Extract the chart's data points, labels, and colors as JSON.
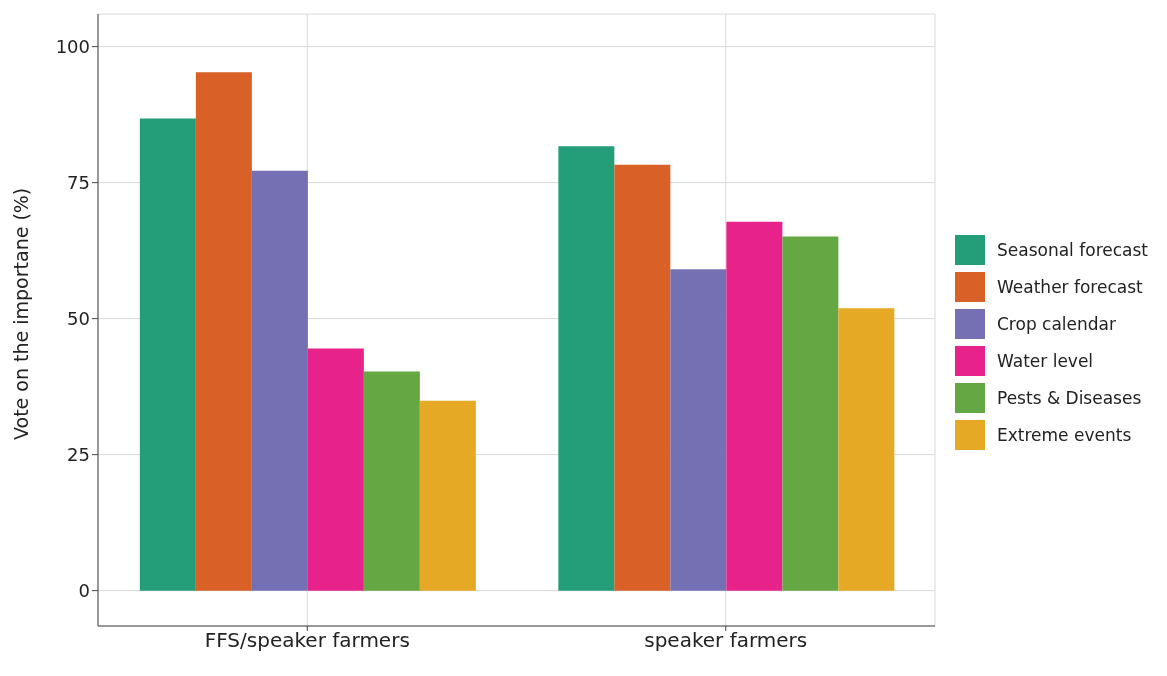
{
  "chart_data": {
    "type": "bar",
    "ylabel": "Vote on the importane (%)",
    "categories": [
      "FFS/speaker farmers",
      "speaker farmers"
    ],
    "series": [
      {
        "name": "Seasonal forecast",
        "color": "#239e78",
        "values": [
          86.8,
          81.7
        ]
      },
      {
        "name": "Weather forecast",
        "color": "#d96027",
        "values": [
          95.3,
          78.3
        ]
      },
      {
        "name": "Crop calendar",
        "color": "#7570b3",
        "values": [
          77.2,
          59.1
        ]
      },
      {
        "name": "Water level",
        "color": "#e7228a",
        "values": [
          44.5,
          67.8
        ]
      },
      {
        "name": "Pests & Diseases",
        "color": "#65a742",
        "values": [
          40.3,
          65.1
        ]
      },
      {
        "name": "Extreme events",
        "color": "#e5a925",
        "values": [
          34.9,
          51.9
        ]
      }
    ],
    "ylim": [
      -6.5,
      106
    ],
    "yticks": [
      0,
      25,
      50,
      75,
      100
    ],
    "grid": true,
    "legend": "right"
  }
}
